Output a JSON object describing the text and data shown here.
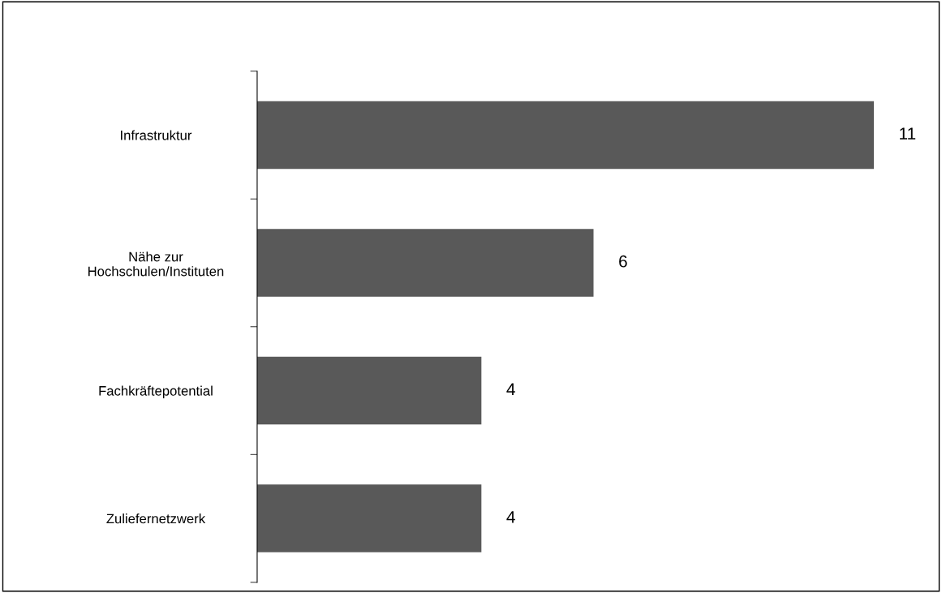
{
  "chart_data": {
    "type": "bar",
    "orientation": "horizontal",
    "categories": [
      "Infrastruktur",
      "Nähe zur\nHochschulen/Instituten",
      "Fachkräftepotential",
      "Zuliefernetzwerk"
    ],
    "values": [
      11,
      6,
      4,
      4
    ],
    "color": "#595959",
    "data_labels": true,
    "grid": false,
    "legend": false
  }
}
